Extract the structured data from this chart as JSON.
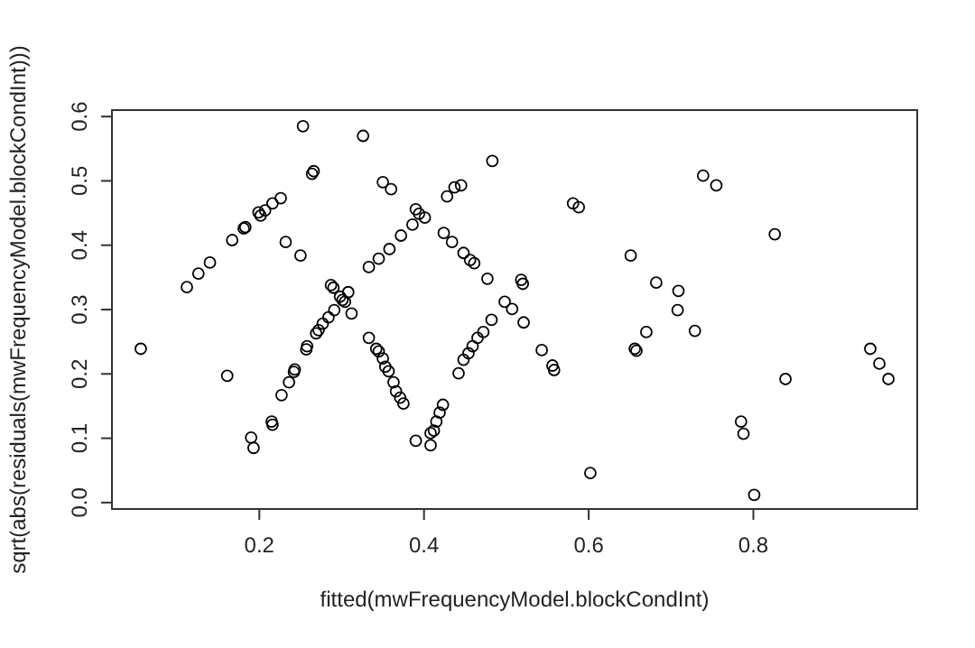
{
  "chart_data": {
    "type": "scatter",
    "xlabel": "fitted(mwFrequencyModel.blockCondInt)",
    "ylabel": "sqrt(abs(residuals(mwFrequencyModel.blockCondInt)))",
    "xlim": [
      0.021,
      0.999
    ],
    "ylim": [
      -0.01,
      0.61
    ],
    "xticks": [
      0.2,
      0.4,
      0.6,
      0.8
    ],
    "yticks": [
      {
        "value": 0,
        "label": "0.0"
      },
      0.1,
      0.2,
      0.3,
      0.4,
      0.5,
      0.6
    ],
    "marker": "circle",
    "series": [
      {
        "color": "#000000",
        "x": [
          0.253,
          0.326,
          0.264,
          0.266,
          0.35,
          0.36,
          0.226,
          0.216,
          0.207,
          0.2015,
          0.199,
          0.183,
          0.181,
          0.167,
          0.232,
          0.25,
          0.14,
          0.126,
          0.112,
          0.056,
          0.161,
          0.19,
          0.193,
          0.215,
          0.216,
          0.227,
          0.236,
          0.242,
          0.243,
          0.257,
          0.258,
          0.269,
          0.272,
          0.277,
          0.284,
          0.291,
          0.287,
          0.29,
          0.298,
          0.301,
          0.304,
          0.308,
          0.312,
          0.333,
          0.345,
          0.358,
          0.372,
          0.333,
          0.342,
          0.345,
          0.35,
          0.353,
          0.357,
          0.363,
          0.366,
          0.371,
          0.375,
          0.386,
          0.39,
          0.394,
          0.401,
          0.428,
          0.437,
          0.445,
          0.483,
          0.424,
          0.434,
          0.448,
          0.456,
          0.461,
          0.477,
          0.518,
          0.52,
          0.498,
          0.507,
          0.521,
          0.482,
          0.472,
          0.465,
          0.459,
          0.454,
          0.448,
          0.442,
          0.543,
          0.556,
          0.558,
          0.423,
          0.419,
          0.415,
          0.412,
          0.408,
          0.39,
          0.408,
          0.581,
          0.588,
          0.651,
          0.682,
          0.67,
          0.656,
          0.658,
          0.602,
          0.739,
          0.755,
          0.826,
          0.709,
          0.708,
          0.729,
          0.839,
          0.942,
          0.953,
          0.964,
          0.785,
          0.788,
          0.801
        ],
        "values": [
          0.585,
          0.57,
          0.511,
          0.515,
          0.498,
          0.487,
          0.473,
          0.465,
          0.454,
          0.446,
          0.451,
          0.428,
          0.426,
          0.408,
          0.405,
          0.384,
          0.373,
          0.356,
          0.335,
          0.239,
          0.197,
          0.101,
          0.085,
          0.126,
          0.121,
          0.167,
          0.187,
          0.203,
          0.207,
          0.238,
          0.243,
          0.263,
          0.268,
          0.278,
          0.288,
          0.299,
          0.338,
          0.334,
          0.32,
          0.315,
          0.312,
          0.327,
          0.294,
          0.366,
          0.379,
          0.394,
          0.415,
          0.256,
          0.239,
          0.235,
          0.224,
          0.211,
          0.204,
          0.187,
          0.173,
          0.163,
          0.154,
          0.432,
          0.456,
          0.449,
          0.443,
          0.476,
          0.49,
          0.493,
          0.531,
          0.419,
          0.405,
          0.388,
          0.377,
          0.372,
          0.348,
          0.346,
          0.34,
          0.312,
          0.301,
          0.28,
          0.284,
          0.265,
          0.256,
          0.243,
          0.232,
          0.222,
          0.201,
          0.237,
          0.213,
          0.206,
          0.152,
          0.14,
          0.126,
          0.112,
          0.108,
          0.096,
          0.089,
          0.465,
          0.459,
          0.384,
          0.342,
          0.265,
          0.239,
          0.236,
          0.046,
          0.508,
          0.493,
          0.417,
          0.329,
          0.299,
          0.267,
          0.192,
          0.239,
          0.216,
          0.192,
          0.126,
          0.107,
          0.012
        ]
      }
    ]
  }
}
